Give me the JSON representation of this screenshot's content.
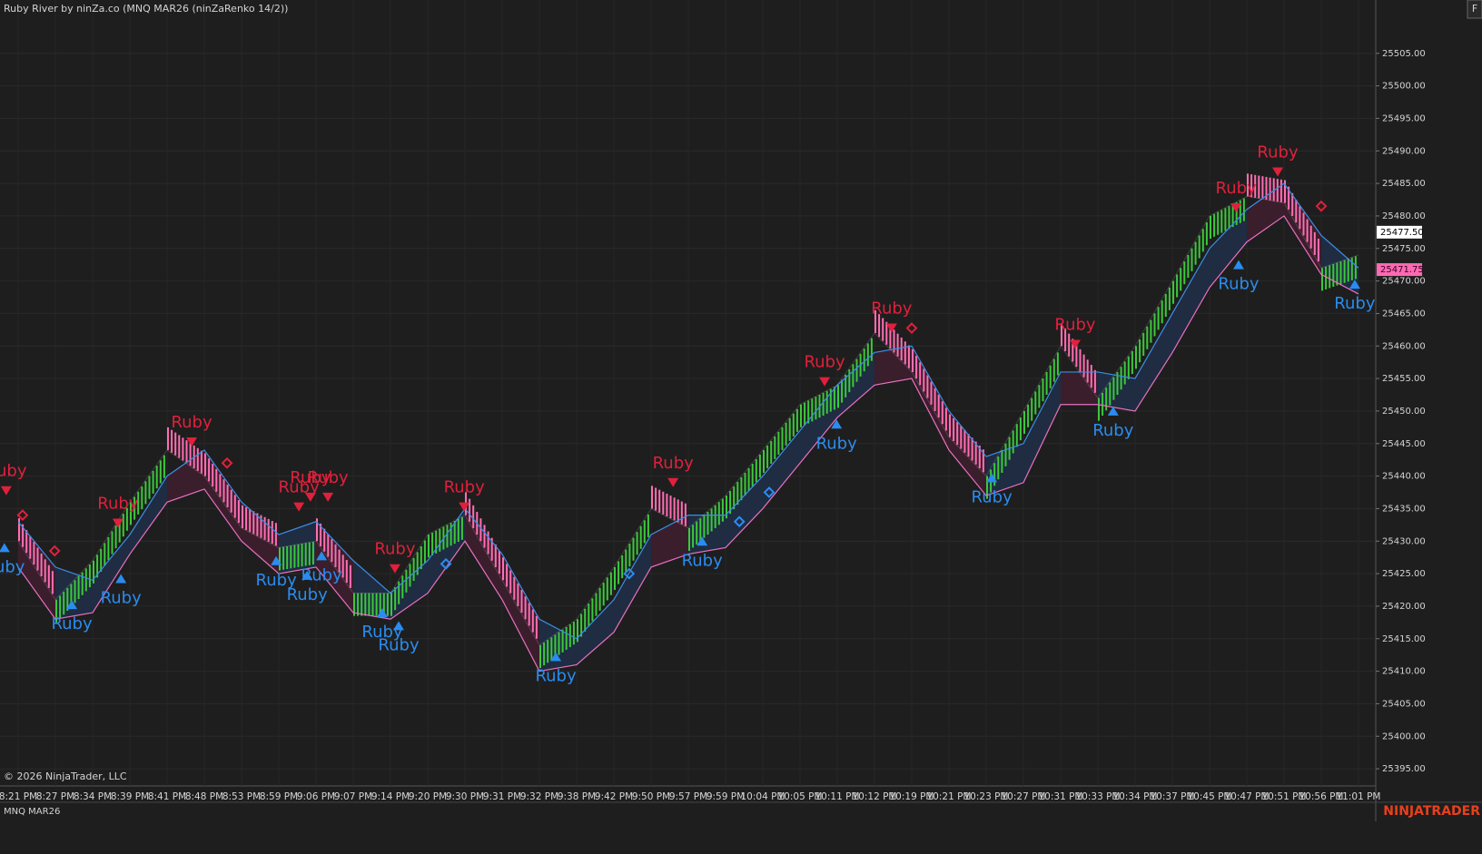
{
  "chart_data": {
    "type": "renko",
    "title": "Ruby River by ninZa.co (MNQ MAR26 (ninZaRenko 14/2))",
    "copyright": "© 2026 NinjaTrader, LLC",
    "instrument": "MNQ MAR26",
    "brand": "NINJATRADER",
    "button": "F",
    "categories": [
      "8:21 PM",
      "8:27 PM",
      "8:34 PM",
      "8:39 PM",
      "8:41 PM",
      "8:48 PM",
      "8:53 PM",
      "8:59 PM",
      "9:06 PM",
      "9:07 PM",
      "9:14 PM",
      "9:20 PM",
      "9:30 PM",
      "9:31 PM",
      "9:32 PM",
      "9:38 PM",
      "9:42 PM",
      "9:50 PM",
      "9:57 PM",
      "9:59 PM",
      "10:04 PM",
      "10:05 PM",
      "10:11 PM",
      "10:12 PM",
      "10:19 PM",
      "10:21 PM",
      "10:23 PM",
      "10:27 PM",
      "10:31 PM",
      "10:33 PM",
      "10:34 PM",
      "10:37 PM",
      "10:45 PM",
      "10:47 PM",
      "10:51 PM",
      "10:56 PM",
      "11:01 PM"
    ],
    "values": [
      25430,
      25421,
      25427,
      25436,
      25444,
      25440,
      25432,
      25429,
      25430,
      25422,
      25422,
      25431,
      25434,
      25424,
      25414,
      25418,
      25426,
      25435,
      25432,
      25437,
      25444,
      25451,
      25454,
      25462,
      25456,
      25446,
      25440,
      25450,
      25460,
      25452,
      25460,
      25470,
      25480,
      25483,
      25482,
      25472,
      25474
    ],
    "band_upper": [
      25433,
      25426,
      25424,
      25431,
      25440,
      25444,
      25436,
      25431,
      25433,
      25427,
      25422,
      25427,
      25435,
      25428,
      25418,
      25415,
      25421,
      25431,
      25434,
      25434,
      25440,
      25447,
      25454,
      25459,
      25460,
      25450,
      25443,
      25445,
      25456,
      25456,
      25455,
      25465,
      25475,
      25481,
      25485,
      25477,
      25472
    ],
    "band_lower": [
      25426,
      25418,
      25419,
      25428,
      25436,
      25438,
      25430,
      25425,
      25426,
      25419,
      25418,
      25422,
      25430,
      25421,
      25410,
      25411,
      25416,
      25426,
      25428,
      25429,
      25435,
      25442,
      25449,
      25454,
      25455,
      25444,
      25437,
      25439,
      25451,
      25451,
      25450,
      25459,
      25469,
      25476,
      25480,
      25471,
      25468
    ],
    "colors": {
      "up": "#3cc83c",
      "down": "#ff6eb4",
      "band_up": "#1f2c42",
      "band_down": "#3b1e2c",
      "upper_line": "#3a8ee6",
      "lower_line": "#e870c0",
      "sell": "#e0203c",
      "buy": "#2a8cf0"
    },
    "ylim": [
      25392.5,
      25513.2
    ],
    "yticks": [
      {
        "value": 25395,
        "label": "25395.00"
      },
      {
        "value": 25400,
        "label": "25400.00"
      },
      {
        "value": 25405,
        "label": "25405.00"
      },
      {
        "value": 25410,
        "label": "25410.00"
      },
      {
        "value": 25415,
        "label": "25415.00"
      },
      {
        "value": 25420,
        "label": "25420.00"
      },
      {
        "value": 25425,
        "label": "25425.00"
      },
      {
        "value": 25430,
        "label": "25430.00"
      },
      {
        "value": 25435,
        "label": "25435.00"
      },
      {
        "value": 25440,
        "label": "25440.00"
      },
      {
        "value": 25445,
        "label": "25445.00"
      },
      {
        "value": 25450,
        "label": "25450.00"
      },
      {
        "value": 25455,
        "label": "25455.00"
      },
      {
        "value": 25460,
        "label": "25460.00"
      },
      {
        "value": 25465,
        "label": "25465.00"
      },
      {
        "value": 25470,
        "label": "25470.00"
      },
      {
        "value": 25475,
        "label": "25475.00"
      },
      {
        "value": 25480,
        "label": "25480.00"
      },
      {
        "value": 25485,
        "label": "25485.00"
      },
      {
        "value": 25490,
        "label": "25490.00"
      },
      {
        "value": 25495,
        "label": "25495.00"
      },
      {
        "value": 25500,
        "label": "25500.00"
      },
      {
        "value": 25505,
        "label": "25505.00"
      }
    ],
    "grid": true,
    "price_markers": [
      {
        "value": 25477.5,
        "label": "25477.50",
        "color": "#ffffff",
        "text_color": "#000000"
      },
      {
        "value": 25471.75,
        "label": "25471.75",
        "color": "#ff69b4",
        "text_color": "#3a0020"
      }
    ],
    "signals": [
      {
        "text": "Ruby",
        "side": "sell",
        "index": -0.32,
        "value": 25437.75
      },
      {
        "text": "Ruby",
        "side": "sell",
        "index": 2.68,
        "value": 25432.75
      },
      {
        "text": "Ruby",
        "side": "sell",
        "index": 4.66,
        "value": 25445.25
      },
      {
        "text": "Ruby",
        "side": "sell",
        "index": 7.54,
        "value": 25435.25
      },
      {
        "text": "Ruby",
        "side": "sell",
        "index": 7.85,
        "value": 25436.75
      },
      {
        "text": "Ruby",
        "side": "sell",
        "index": 8.32,
        "value": 25436.75
      },
      {
        "text": "Ruby",
        "side": "sell",
        "index": 10.12,
        "value": 25425.75
      },
      {
        "text": "Ruby",
        "side": "sell",
        "index": 11.98,
        "value": 25435.25
      },
      {
        "text": "Ruby",
        "side": "sell",
        "index": 17.59,
        "value": 25439
      },
      {
        "text": "Ruby",
        "side": "sell",
        "index": 21.66,
        "value": 25454.5
      },
      {
        "text": "Ruby",
        "side": "sell",
        "index": 23.46,
        "value": 25462.75
      },
      {
        "text": "Ruby",
        "side": "sell",
        "index": 28.39,
        "value": 25460.25
      },
      {
        "text": "Ruby",
        "side": "sell",
        "index": 32.71,
        "value": 25481.25
      },
      {
        "text": "Ruby",
        "side": "sell",
        "index": 33.83,
        "value": 25486.75
      },
      {
        "text": "Ruby",
        "side": "buy",
        "index": -0.37,
        "value": 25429
      },
      {
        "text": "Ruby",
        "side": "buy",
        "index": 1.44,
        "value": 25420.25
      },
      {
        "text": "Ruby",
        "side": "buy",
        "index": 2.76,
        "value": 25424.25
      },
      {
        "text": "Ruby",
        "side": "buy",
        "index": 6.93,
        "value": 25427
      },
      {
        "text": "Ruby",
        "side": "buy",
        "index": 7.76,
        "value": 25424.75
      },
      {
        "text": "Ruby",
        "side": "buy",
        "index": 8.15,
        "value": 25427.75
      },
      {
        "text": "Ruby",
        "side": "buy",
        "index": 9.78,
        "value": 25419
      },
      {
        "text": "Ruby",
        "side": "buy",
        "index": 10.22,
        "value": 25417
      },
      {
        "text": "Ruby",
        "side": "buy",
        "index": 14.44,
        "value": 25412.25
      },
      {
        "text": "Ruby",
        "side": "buy",
        "index": 18.37,
        "value": 25430
      },
      {
        "text": "Ruby",
        "side": "buy",
        "index": 21.98,
        "value": 25448
      },
      {
        "text": "Ruby",
        "side": "buy",
        "index": 26.15,
        "value": 25439.75
      },
      {
        "text": "Ruby",
        "side": "buy",
        "index": 29.41,
        "value": 25450
      },
      {
        "text": "Ruby",
        "side": "buy",
        "index": 32.78,
        "value": 25472.5
      },
      {
        "text": "Ruby",
        "side": "buy",
        "index": 35.9,
        "value": 25469.5
      }
    ],
    "diamonds": [
      {
        "side": "sell",
        "index": 0.12,
        "value": 25434
      },
      {
        "side": "sell",
        "index": 0.98,
        "value": 25428.5
      },
      {
        "side": "sell",
        "index": 5.61,
        "value": 25442
      },
      {
        "side": "sell",
        "index": 24,
        "value": 25462.75
      },
      {
        "side": "sell",
        "index": 35,
        "value": 25481.5
      },
      {
        "side": "buy",
        "index": 11.49,
        "value": 25426.5
      },
      {
        "side": "buy",
        "index": 16.41,
        "value": 25425
      },
      {
        "side": "buy",
        "index": 19.37,
        "value": 25433
      },
      {
        "side": "buy",
        "index": 20.17,
        "value": 25437.5
      }
    ]
  }
}
